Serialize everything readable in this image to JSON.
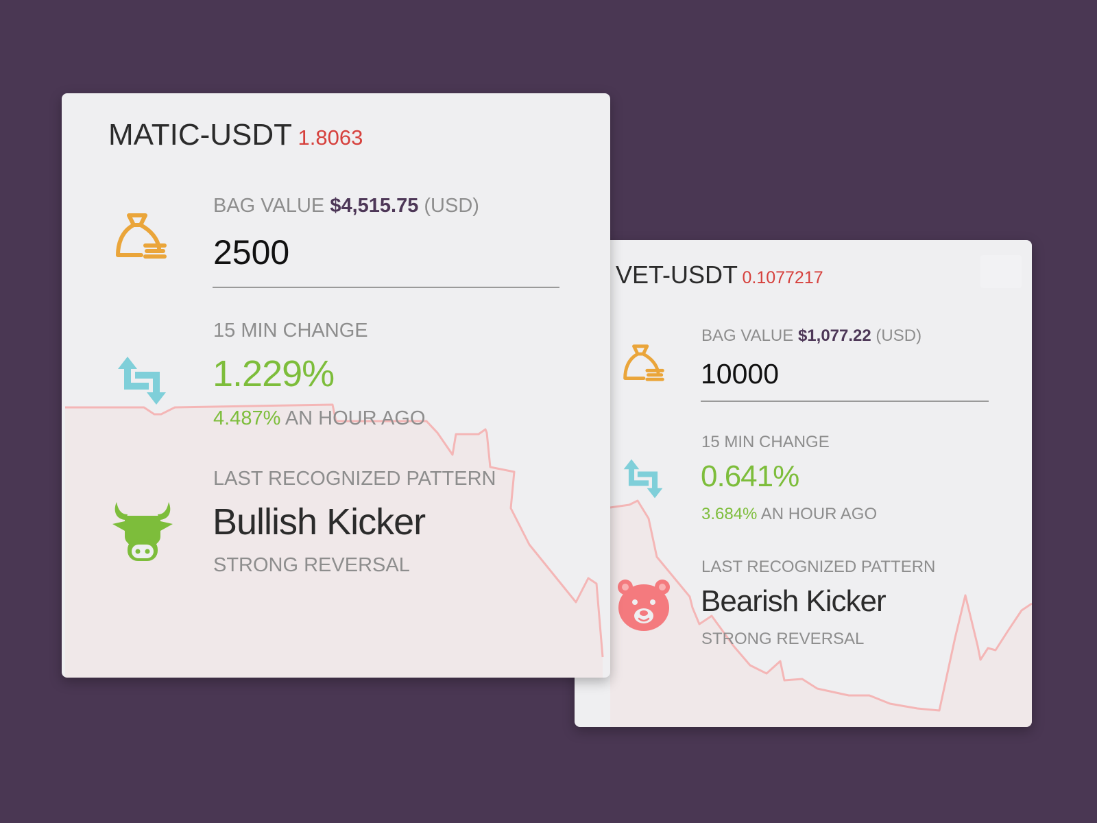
{
  "cards": [
    {
      "symbol": "MATIC-USDT",
      "price": "1.8063",
      "bag_value_label": "BAG VALUE",
      "bag_value": "$4,515.75",
      "bag_value_unit": "(USD)",
      "quantity": "2500",
      "change_label": "15 MIN CHANGE",
      "change_15min": "1.229%",
      "change_hour": "4.487%",
      "change_hour_suffix": "AN HOUR AGO",
      "pattern_label": "LAST RECOGNIZED PATTERN",
      "pattern_name": "Bullish Kicker",
      "pattern_type": "STRONG REVERSAL",
      "bag_icon": "money-bag-icon",
      "change_icon": "swap-arrows-icon",
      "pattern_icon": "bull-icon"
    },
    {
      "symbol": "VET-USDT",
      "price": "0.1077217",
      "bag_value_label": "BAG VALUE",
      "bag_value": "$1,077.22",
      "bag_value_unit": "(USD)",
      "quantity": "10000",
      "change_label": "15 MIN CHANGE",
      "change_15min": "0.641%",
      "change_hour": "3.684%",
      "change_hour_suffix": "AN HOUR AGO",
      "pattern_label": "LAST RECOGNIZED PATTERN",
      "pattern_name": "Bearish Kicker",
      "pattern_type": "STRONG REVERSAL",
      "bag_icon": "money-bag-icon",
      "change_icon": "swap-arrows-icon",
      "pattern_icon": "bear-icon"
    }
  ],
  "colors": {
    "background": "#4a3753",
    "card": "#efeff1",
    "price": "#d6403c",
    "positive": "#7dbd3b",
    "bag_value": "#4d3757",
    "bag_icon": "#eaa53a",
    "swap_icon": "#7fcfd9",
    "bull_icon": "#7dbd3b",
    "bear_icon": "#f47a7e",
    "sparkline": "#f4b6b6"
  }
}
